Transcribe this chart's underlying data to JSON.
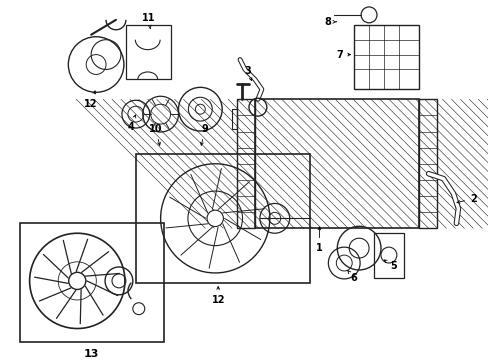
{
  "background_color": "#ffffff",
  "fig_width": 4.9,
  "fig_height": 3.6,
  "dpi": 100,
  "line_color": "#222222",
  "text_color": "#000000"
}
